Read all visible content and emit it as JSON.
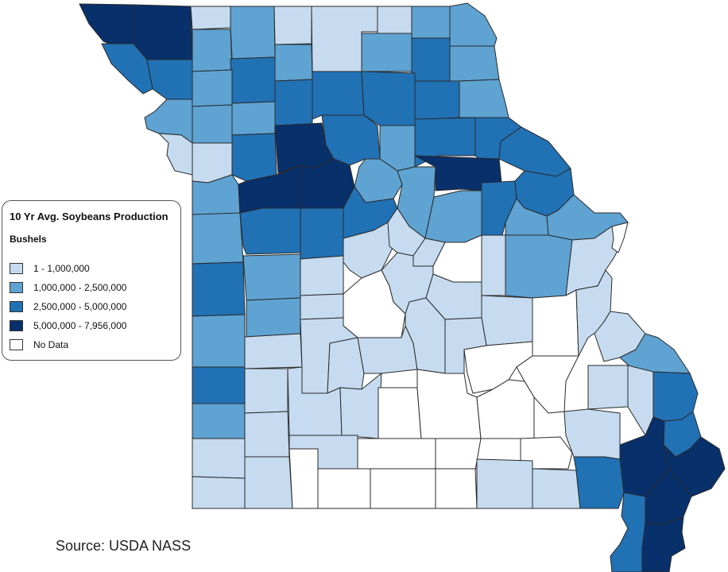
{
  "legend": {
    "title": "10 Yr Avg. Soybeans Production",
    "subtitle": "Bushels",
    "items": [
      {
        "label": "1 - 1,000,000",
        "color": "#c6dbef"
      },
      {
        "label": "1,000,000 - 2,500,000",
        "color": "#5ea3d2"
      },
      {
        "label": "2,500,000 - 5,000,000",
        "color": "#2171b5"
      },
      {
        "label": "5,000,000 - 7,956,000",
        "color": "#08306b"
      },
      {
        "label": "No Data",
        "color": "#ffffff"
      }
    ]
  },
  "source": "Source: USDA NASS",
  "colors": {
    "c1": "#c6dbef",
    "c2": "#5ea3d2",
    "c3": "#2171b5",
    "c4": "#08306b",
    "none": "#ffffff",
    "border": "#2a2a2a"
  }
}
